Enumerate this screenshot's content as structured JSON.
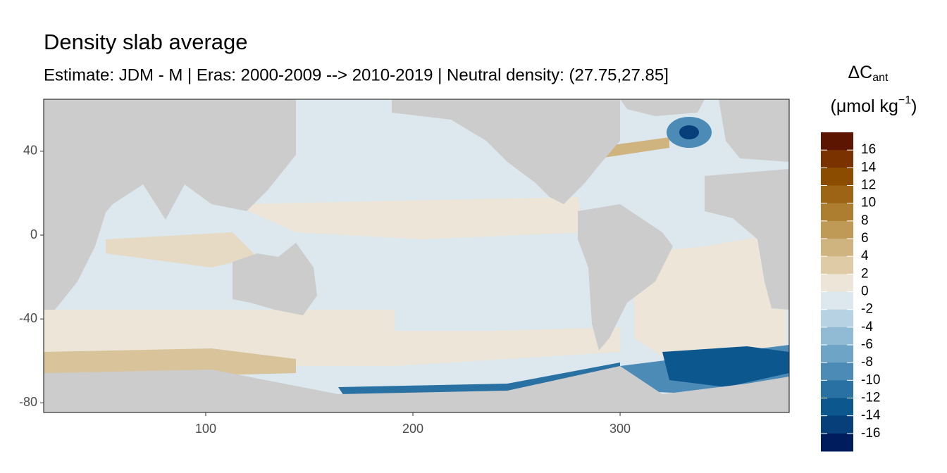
{
  "chart_data": {
    "type": "map",
    "title": "Density slab average",
    "subtitle": "Estimate: JDM - M | Eras: 2000-2009 --> 2010-2019 | Neutral density: (27.75,27.85]",
    "xlim": [
      21.8,
      381.6
    ],
    "xticks": [
      100,
      200,
      300
    ],
    "ylim": [
      -84.6,
      64.8
    ],
    "yticks": [
      40,
      0,
      -40,
      -80
    ],
    "legend": {
      "title": [
        "ΔC",
        "ant",
        "(μmol kg",
        "−1",
        ")"
      ],
      "lim": [
        -18,
        18
      ],
      "breaks": [
        16,
        14,
        12,
        10,
        8,
        6,
        4,
        2,
        0,
        -2,
        -4,
        -6,
        -8,
        -10,
        -12,
        -14,
        -16
      ],
      "colors": [
        "#5c1500",
        "#7a3200",
        "#8c4c00",
        "#9c6414",
        "#ae7e30",
        "#be9a56",
        "#cfb47f",
        "#dfcca6",
        "#ece5d8",
        "#dce8ee",
        "#b7d2e2",
        "#91bbd5",
        "#6ea4c6",
        "#4b8bb6",
        "#2971a3",
        "#0d578f",
        "#063f7a",
        "#001c5c"
      ]
    }
  }
}
